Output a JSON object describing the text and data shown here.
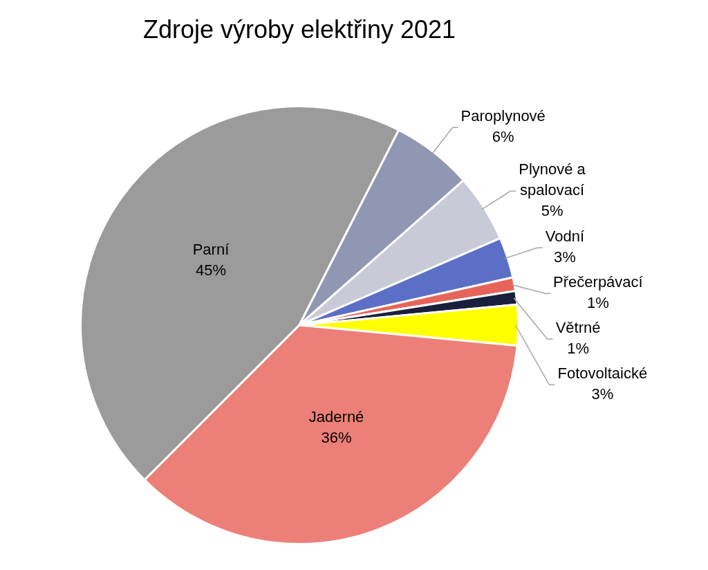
{
  "chart_data": {
    "type": "pie",
    "title": "Zdroje výroby elektřiny 2021",
    "categories": [
      "Parní",
      "Paroplynové",
      "Plynové a spalovací",
      "Vodní",
      "Přečerpávací",
      "Větrné",
      "Fotovoltaické",
      "Jaderné"
    ],
    "values": [
      45,
      6,
      5,
      3,
      1,
      1,
      3,
      36
    ],
    "colors": [
      "#9b9b9b",
      "#9097b2",
      "#c9cad8",
      "#5b6fc6",
      "#e8645a",
      "#1a1f3d",
      "#ffff00",
      "#ec7f77"
    ],
    "value_labels": [
      "45%",
      "6%",
      "5%",
      "3%",
      "1%",
      "1%",
      "3%",
      "36%"
    ]
  }
}
